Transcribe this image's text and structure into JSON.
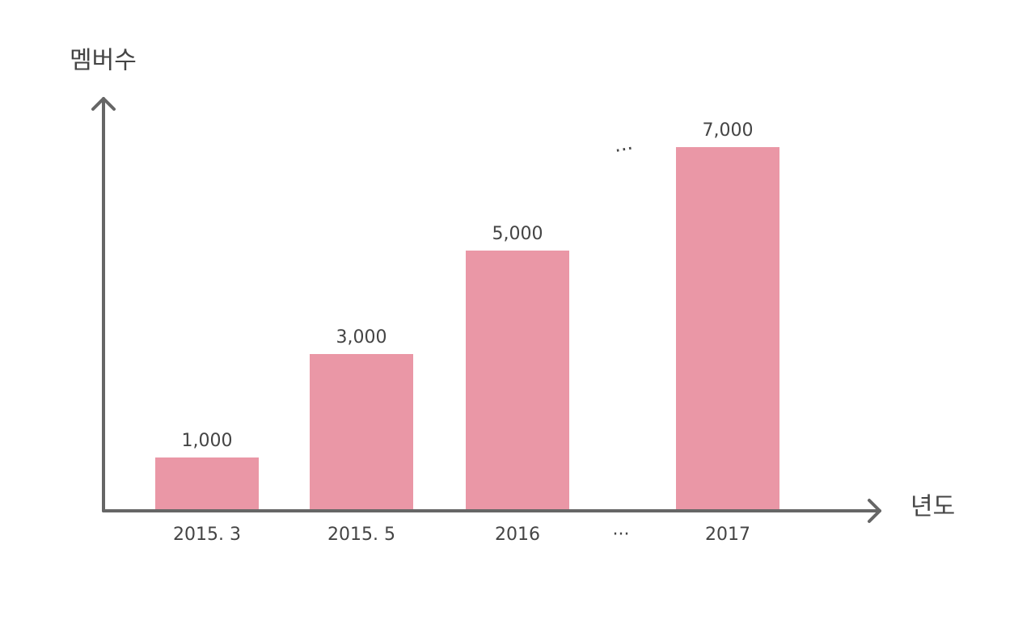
{
  "chart_data": {
    "type": "bar",
    "y_label": "멤버수",
    "x_label": "년도",
    "categories": [
      "2015. 3",
      "2015. 5",
      "2016",
      "···",
      "2017"
    ],
    "values": [
      1000,
      3000,
      5000,
      null,
      7000
    ],
    "value_labels": [
      "1,000",
      "3,000",
      "5,000",
      null,
      "7,000"
    ],
    "annotations": [
      "···"
    ],
    "color": "#ea97a6",
    "ylim": [
      0,
      7000
    ],
    "grid": false
  }
}
